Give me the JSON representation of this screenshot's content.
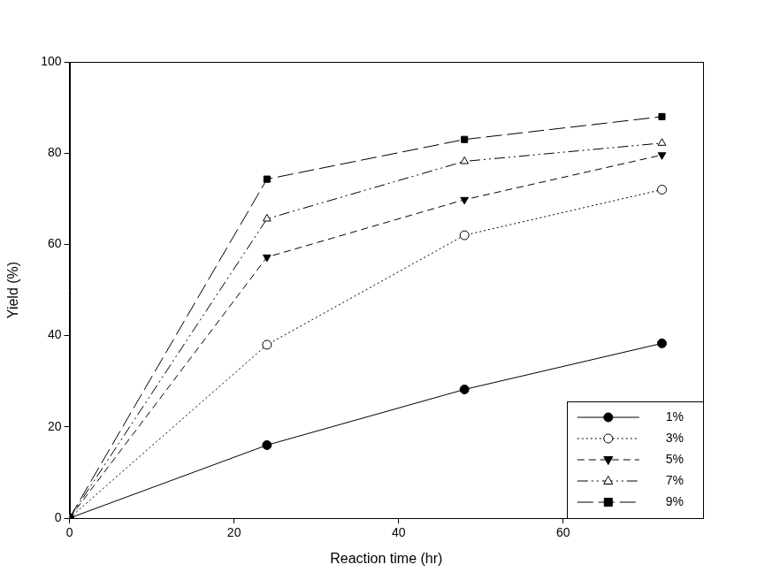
{
  "chart_data": {
    "type": "line",
    "x": [
      0,
      24,
      48,
      72
    ],
    "series": [
      {
        "name": "1%",
        "color": "#000000",
        "marker": "circle",
        "line_style": "solid",
        "values": [
          0,
          16,
          28.2,
          38.3
        ]
      },
      {
        "name": "3%",
        "color": "#000000",
        "marker": "circle-open",
        "line_style": "dotted",
        "values": [
          0,
          38,
          62,
          72
        ]
      },
      {
        "name": "5%",
        "color": "#000000",
        "marker": "triangle-down",
        "line_style": "dashed",
        "values": [
          0,
          57.2,
          69.8,
          79.6
        ]
      },
      {
        "name": "7%",
        "color": "#000000",
        "marker": "triangle-open",
        "line_style": "dashdot",
        "values": [
          0,
          65.6,
          78.2,
          82.2
        ]
      },
      {
        "name": "9%",
        "color": "#000000",
        "marker": "square",
        "line_style": "longdash",
        "values": [
          0,
          74.3,
          83,
          88
        ]
      }
    ],
    "x_label": "Reaction time (hr)",
    "y_label": "Yield (%)",
    "xlim": [
      0,
      77
    ],
    "xticks": [
      0,
      20,
      40,
      60
    ],
    "ylim": [
      0,
      100
    ],
    "yticks": [
      0,
      20,
      40,
      60,
      80,
      100
    ],
    "grid": false,
    "legend": "lower right"
  }
}
